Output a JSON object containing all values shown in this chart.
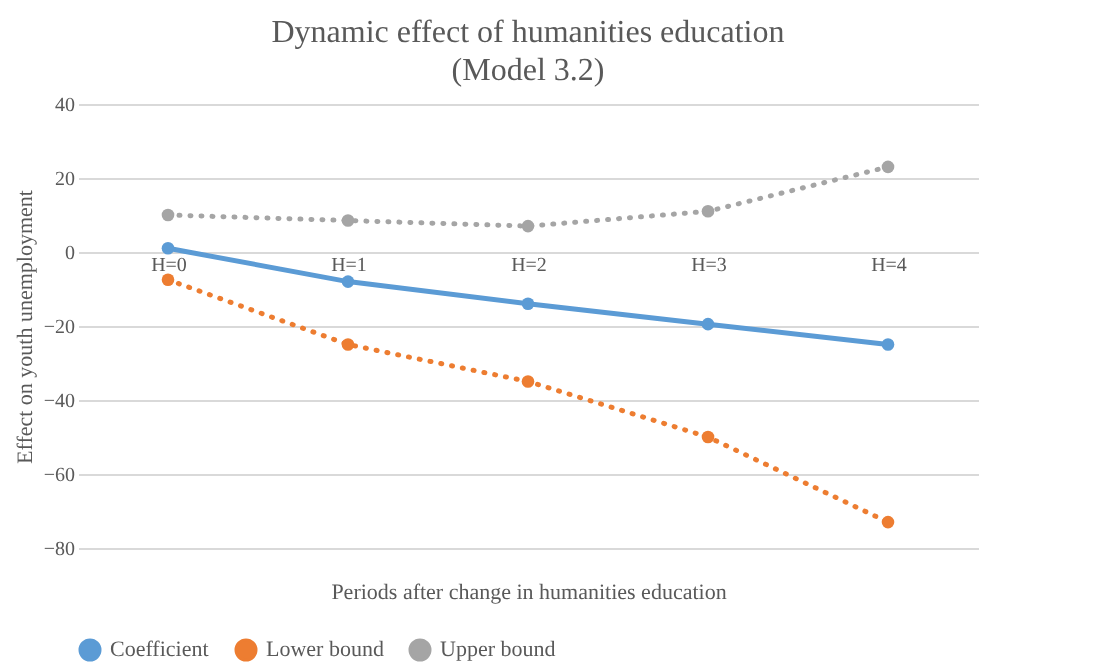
{
  "chart_data": {
    "type": "line",
    "title": "Dynamic effect of humanities education (Model 3.2)",
    "xlabel": "Periods after change in humanities education",
    "ylabel": "Effect on youth unemployment",
    "categories": [
      "H=0",
      "H=1",
      "H=2",
      "H=3",
      "H=4"
    ],
    "series": [
      {
        "name": "Coefficient",
        "color": "#5b9bd5",
        "line_style": "solid",
        "values": [
          1,
          -8,
          -14,
          -19.5,
          -25
        ]
      },
      {
        "name": "Lower bound",
        "color": "#ed7d31",
        "line_style": "dotted",
        "values": [
          -7.5,
          -25,
          -35,
          -50,
          -73
        ]
      },
      {
        "name": "Upper bound",
        "color": "#a5a5a5",
        "line_style": "dotted",
        "values": [
          10,
          8.5,
          7,
          11,
          23
        ]
      }
    ],
    "ylim": [
      -80,
      40
    ],
    "yticks": [
      -80,
      -60,
      -40,
      -20,
      0,
      20,
      40
    ],
    "grid": "y",
    "legend": "bottom",
    "marker": "circle"
  }
}
